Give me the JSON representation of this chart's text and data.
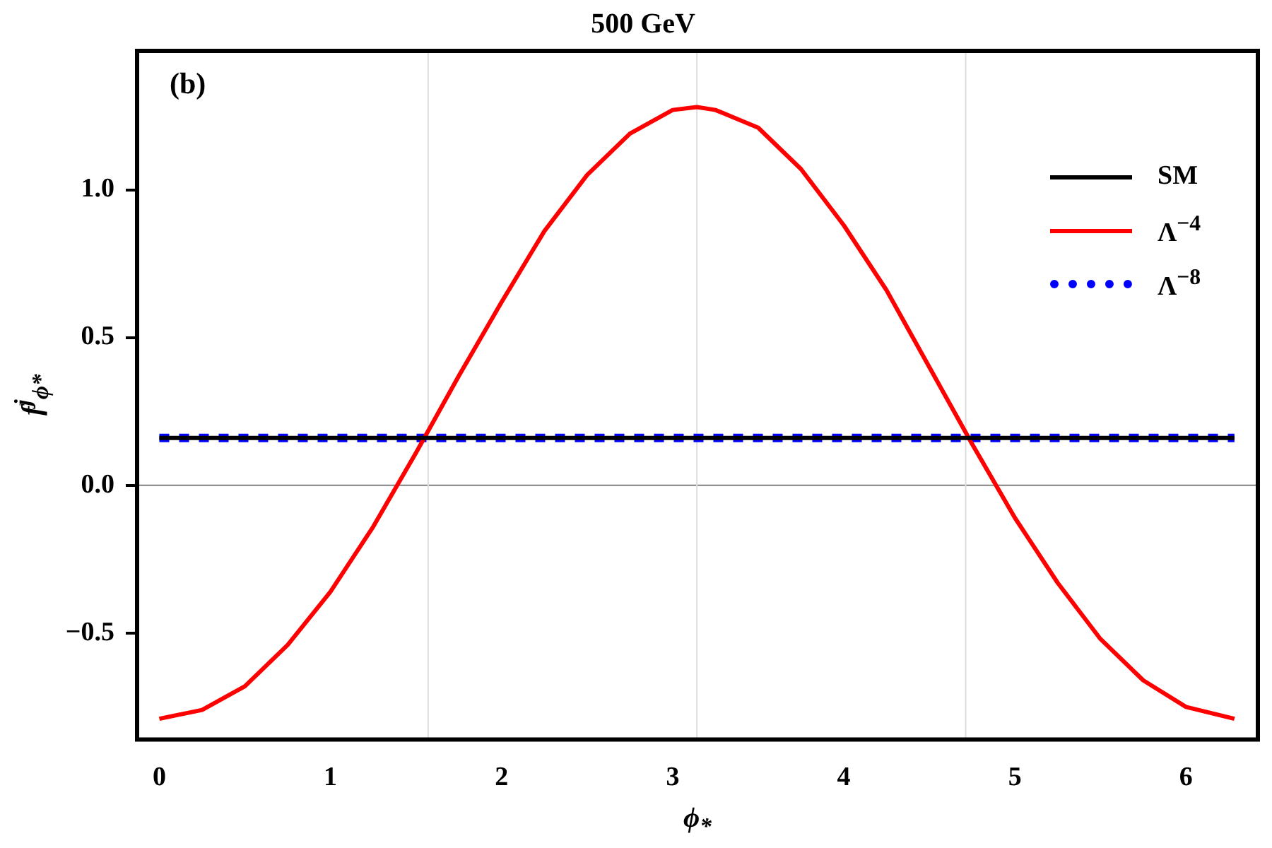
{
  "chart_data": {
    "type": "line",
    "title": "500 GeV",
    "xlabel": "ϕ$_{*}$",
    "ylabel": "f$^{j}$$_{ϕ*}$",
    "annotations": [
      "(b)"
    ],
    "xlim": [
      -0.13,
      6.42
    ],
    "ylim": [
      -0.86,
      1.47
    ],
    "xticks": [
      0,
      1,
      2,
      3,
      4,
      5,
      6
    ],
    "yticks": [
      {
        "value": -0.5,
        "label": "−0.5"
      },
      {
        "value": 0,
        "label": "0.0"
      },
      {
        "value": 0.5,
        "label": "0.5"
      },
      {
        "value": 1,
        "label": "1.0"
      }
    ],
    "grid": false,
    "legend": "top right",
    "ref_lines": [
      {
        "axis": "y",
        "value": 0,
        "color": "#808080"
      },
      {
        "axis": "x",
        "value": 1.5708,
        "color": "#dddddd"
      },
      {
        "axis": "x",
        "value": 3.1416,
        "color": "#dddddd"
      },
      {
        "axis": "x",
        "value": 4.7124,
        "color": "#dddddd"
      }
    ],
    "series": [
      {
        "name": "SM",
        "color": "#000000",
        "line_style": "solid",
        "x": [
          0,
          6.283
        ],
        "values": [
          0.16,
          0.16
        ]
      },
      {
        "name": "Λ$^{−4}$",
        "color": "#ff0000",
        "line_style": "solid",
        "x": [
          0,
          0.25,
          0.5,
          0.75,
          1,
          1.25,
          1.5,
          1.75,
          2,
          2.25,
          2.5,
          2.75,
          3,
          3.1416,
          3.25,
          3.5,
          3.75,
          4,
          4.25,
          4.5,
          4.75,
          5,
          5.25,
          5.5,
          5.75,
          6,
          6.283
        ],
        "values": [
          -0.79,
          -0.76,
          -0.68,
          -0.54,
          -0.36,
          -0.14,
          0.11,
          0.37,
          0.62,
          0.86,
          1.05,
          1.19,
          1.27,
          1.28,
          1.27,
          1.21,
          1.07,
          0.88,
          0.66,
          0.4,
          0.14,
          -0.11,
          -0.33,
          -0.52,
          -0.66,
          -0.75,
          -0.79
        ]
      },
      {
        "name": "Λ$^{−8}$",
        "color": "#0000ff",
        "line_style": "dotted",
        "x": [
          0,
          6.283
        ],
        "values": [
          0.16,
          0.16
        ]
      }
    ]
  }
}
